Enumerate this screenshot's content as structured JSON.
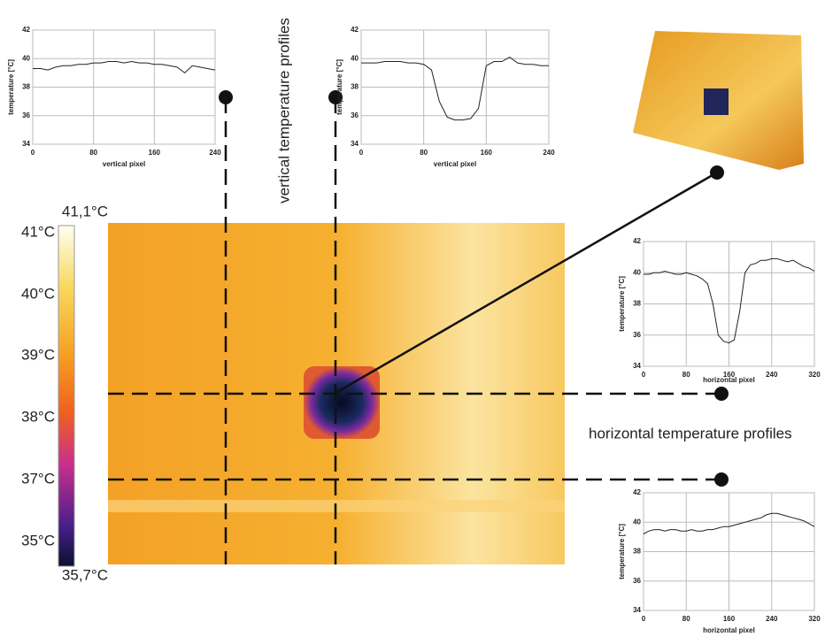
{
  "chart_data": [
    {
      "type": "line",
      "xlabel": "vertical pixel",
      "ylabel": "temperature [°C]",
      "x": [
        0,
        10,
        20,
        30,
        40,
        50,
        60,
        70,
        80,
        90,
        100,
        110,
        120,
        130,
        140,
        150,
        160,
        170,
        180,
        190,
        200,
        210,
        220,
        230,
        240
      ],
      "series": [
        {
          "color": "#222222",
          "values": [
            39.3,
            39.3,
            39.2,
            39.4,
            39.5,
            39.5,
            39.6,
            39.6,
            39.7,
            39.7,
            39.8,
            39.8,
            39.7,
            39.8,
            39.7,
            39.7,
            39.6,
            39.6,
            39.5,
            39.4,
            39.0,
            39.5,
            39.4,
            39.3,
            39.2
          ]
        }
      ],
      "xlim": [
        0,
        240
      ],
      "xticks": [
        0,
        80,
        160,
        240
      ],
      "ylim": [
        34,
        42
      ],
      "yticks": [
        34,
        36,
        38,
        40,
        42
      ],
      "grid": true
    },
    {
      "type": "line",
      "xlabel": "vertical pixel",
      "ylabel": "temperature [°C]",
      "x": [
        0,
        10,
        20,
        30,
        40,
        50,
        60,
        70,
        80,
        90,
        100,
        110,
        120,
        130,
        140,
        150,
        160,
        170,
        180,
        190,
        200,
        210,
        220,
        230,
        240
      ],
      "series": [
        {
          "color": "#222222",
          "values": [
            39.7,
            39.7,
            39.7,
            39.8,
            39.8,
            39.8,
            39.7,
            39.7,
            39.6,
            39.2,
            37.0,
            35.9,
            35.7,
            35.7,
            35.8,
            36.5,
            39.5,
            39.8,
            39.8,
            40.1,
            39.7,
            39.6,
            39.6,
            39.5,
            39.5
          ]
        }
      ],
      "xlim": [
        0,
        240
      ],
      "xticks": [
        0,
        80,
        160,
        240
      ],
      "ylim": [
        34,
        42
      ],
      "yticks": [
        34,
        36,
        38,
        40,
        42
      ],
      "grid": true
    },
    {
      "type": "line",
      "xlabel": "horizontal pixel",
      "ylabel": "temperature [°C]",
      "x": [
        0,
        10,
        20,
        30,
        40,
        50,
        60,
        70,
        80,
        90,
        100,
        110,
        120,
        130,
        140,
        150,
        160,
        170,
        180,
        190,
        200,
        210,
        220,
        230,
        240,
        250,
        260,
        270,
        280,
        290,
        300,
        310,
        320
      ],
      "series": [
        {
          "color": "#222222",
          "values": [
            39.9,
            39.9,
            40.0,
            40.0,
            40.1,
            40.0,
            39.9,
            39.9,
            40.0,
            39.9,
            39.8,
            39.6,
            39.3,
            38.0,
            36.0,
            35.6,
            35.5,
            35.7,
            37.5,
            40.0,
            40.5,
            40.6,
            40.8,
            40.8,
            40.9,
            40.9,
            40.8,
            40.7,
            40.8,
            40.6,
            40.4,
            40.3,
            40.1
          ]
        }
      ],
      "xlim": [
        0,
        320
      ],
      "xticks": [
        0,
        80,
        160,
        240,
        320
      ],
      "ylim": [
        34,
        42
      ],
      "yticks": [
        34,
        36,
        38,
        40,
        42
      ],
      "grid": true
    },
    {
      "type": "line",
      "xlabel": "horizontal pixel",
      "ylabel": "temperature [°C]",
      "x": [
        0,
        10,
        20,
        30,
        40,
        50,
        60,
        70,
        80,
        90,
        100,
        110,
        120,
        130,
        140,
        150,
        160,
        170,
        180,
        190,
        200,
        210,
        220,
        230,
        240,
        250,
        260,
        270,
        280,
        290,
        300,
        310,
        320
      ],
      "series": [
        {
          "color": "#222222",
          "values": [
            39.2,
            39.4,
            39.5,
            39.5,
            39.4,
            39.5,
            39.5,
            39.4,
            39.4,
            39.5,
            39.4,
            39.4,
            39.5,
            39.5,
            39.6,
            39.7,
            39.7,
            39.8,
            39.9,
            40.0,
            40.1,
            40.2,
            40.3,
            40.5,
            40.6,
            40.6,
            40.5,
            40.4,
            40.3,
            40.2,
            40.1,
            39.9,
            39.7
          ]
        }
      ],
      "xlim": [
        0,
        320
      ],
      "xticks": [
        0,
        80,
        160,
        240,
        320
      ],
      "ylim": [
        34,
        42
      ],
      "yticks": [
        34,
        36,
        38,
        40,
        42
      ],
      "grid": true
    }
  ],
  "thermal_figure": {
    "colorbar_labels": [
      "41,1°C",
      "41°C",
      "40°C",
      "39°C",
      "38°C",
      "37°C",
      "35°C",
      "35,7°C"
    ],
    "vertical_annotation": "vertical temperature profiles",
    "horizontal_annotation": "horizontal temperature profiles"
  }
}
